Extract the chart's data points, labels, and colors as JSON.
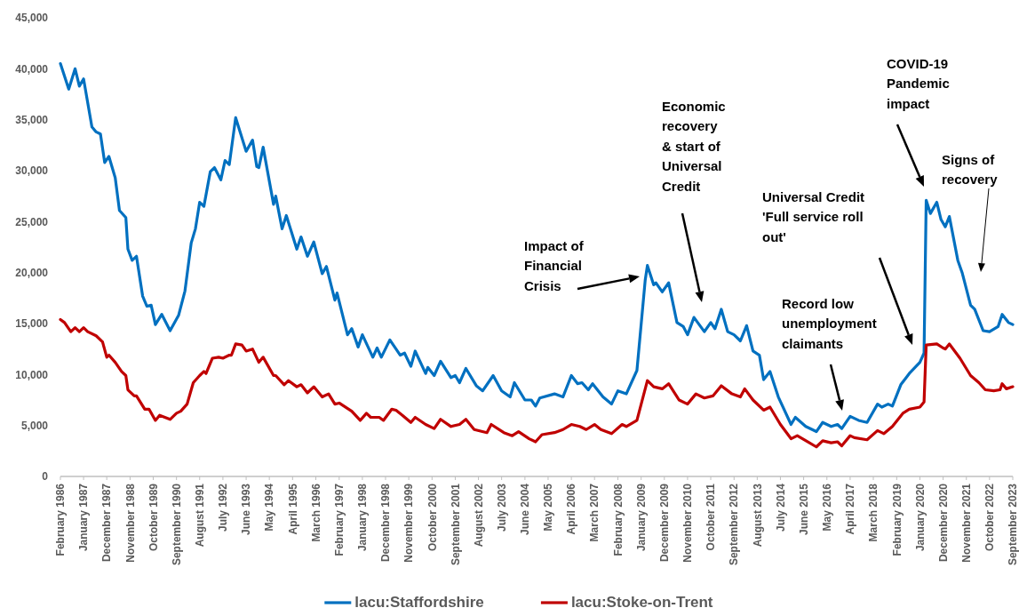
{
  "chart_data": {
    "type": "line",
    "line_style": "solid",
    "marker": "none",
    "grid": false,
    "legend": "bottom",
    "xlim": [
      "1986-02",
      "2023-09"
    ],
    "xticks": [
      {
        "value": "1986-02",
        "label": "February 1986"
      },
      {
        "value": "1987-01",
        "label": "January 1987"
      },
      {
        "value": "1987-12",
        "label": "December 1987"
      },
      {
        "value": "1988-11",
        "label": "November 1988"
      },
      {
        "value": "1989-10",
        "label": "October 1989"
      },
      {
        "value": "1990-09",
        "label": "September 1990"
      },
      {
        "value": "1991-08",
        "label": "August 1991"
      },
      {
        "value": "1992-07",
        "label": "July 1992"
      },
      {
        "value": "1993-06",
        "label": "June 1993"
      },
      {
        "value": "1994-05",
        "label": "May 1994"
      },
      {
        "value": "1995-04",
        "label": "April 1995"
      },
      {
        "value": "1996-03",
        "label": "March 1996"
      },
      {
        "value": "1997-02",
        "label": "February 1997"
      },
      {
        "value": "1998-01",
        "label": "January 1998"
      },
      {
        "value": "1998-12",
        "label": "December 1998"
      },
      {
        "value": "1999-11",
        "label": "November 1999"
      },
      {
        "value": "2000-10",
        "label": "October 2000"
      },
      {
        "value": "2001-09",
        "label": "September 2001"
      },
      {
        "value": "2002-08",
        "label": "August 2002"
      },
      {
        "value": "2003-07",
        "label": "July 2003"
      },
      {
        "value": "2004-06",
        "label": "June 2004"
      },
      {
        "value": "2005-05",
        "label": "May 2005"
      },
      {
        "value": "2006-04",
        "label": "April 2006"
      },
      {
        "value": "2007-03",
        "label": "March 2007"
      },
      {
        "value": "2008-02",
        "label": "February 2008"
      },
      {
        "value": "2009-01",
        "label": "January 2009"
      },
      {
        "value": "2009-12",
        "label": "December 2009"
      },
      {
        "value": "2010-11",
        "label": "November 2010"
      },
      {
        "value": "2011-10",
        "label": "October 2011"
      },
      {
        "value": "2012-09",
        "label": "September 2012"
      },
      {
        "value": "2013-08",
        "label": "August 2013"
      },
      {
        "value": "2014-07",
        "label": "July 2014"
      },
      {
        "value": "2015-06",
        "label": "June 2015"
      },
      {
        "value": "2016-05",
        "label": "May 2016"
      },
      {
        "value": "2017-04",
        "label": "April 2017"
      },
      {
        "value": "2018-03",
        "label": "March 2018"
      },
      {
        "value": "2019-02",
        "label": "February 2019"
      },
      {
        "value": "2020-01",
        "label": "January 2020"
      },
      {
        "value": "2020-12",
        "label": "December 2020"
      },
      {
        "value": "2021-11",
        "label": "November 2021"
      },
      {
        "value": "2022-10",
        "label": "October 2022"
      },
      {
        "value": "2023-09",
        "label": "September 2023"
      }
    ],
    "ylim": [
      0,
      45000
    ],
    "yticks": [
      {
        "value": 0,
        "label": "0"
      },
      {
        "value": 5000,
        "label": "5,000"
      },
      {
        "value": 10000,
        "label": "10,000"
      },
      {
        "value": 15000,
        "label": "15,000"
      },
      {
        "value": 20000,
        "label": "20,000"
      },
      {
        "value": 25000,
        "label": "25,000"
      },
      {
        "value": 30000,
        "label": "30,000"
      },
      {
        "value": 35000,
        "label": "35,000"
      },
      {
        "value": 40000,
        "label": "40,000"
      },
      {
        "value": 45000,
        "label": "45,000"
      }
    ],
    "series": [
      {
        "name": "lacu:Staffordshire",
        "color": "#0070c0",
        "x": [
          "1986-02",
          "1986-06",
          "1986-09",
          "1986-11",
          "1987-01",
          "1987-05",
          "1987-07",
          "1987-09",
          "1987-11",
          "1988-01",
          "1988-04",
          "1988-06",
          "1988-09",
          "1988-10",
          "1988-12",
          "1989-02",
          "1989-05",
          "1989-07",
          "1989-09",
          "1989-11",
          "1990-02",
          "1990-06",
          "1990-10",
          "1991-01",
          "1991-04",
          "1991-06",
          "1991-08",
          "1991-10",
          "1992-01",
          "1992-03",
          "1992-06",
          "1992-08",
          "1992-10",
          "1993-01",
          "1993-03",
          "1993-06",
          "1993-09",
          "1993-11",
          "1993-12",
          "1994-02",
          "1994-07",
          "1994-08",
          "1994-11",
          "1995-01",
          "1995-06",
          "1995-08",
          "1995-11",
          "1996-02",
          "1996-06",
          "1996-08",
          "1996-12",
          "1997-01",
          "1997-06",
          "1997-08",
          "1997-11",
          "1998-01",
          "1998-06",
          "1998-08",
          "1998-10",
          "1999-02",
          "1999-07",
          "1999-09",
          "1999-12",
          "2000-02",
          "2000-07",
          "2000-08",
          "2000-11",
          "2001-02",
          "2001-07",
          "2001-09",
          "2001-11",
          "2002-02",
          "2002-07",
          "2002-10",
          "2003-03",
          "2003-07",
          "2003-11",
          "2004-01",
          "2004-06",
          "2004-09",
          "2004-11",
          "2005-01",
          "2005-08",
          "2005-12",
          "2006-04",
          "2006-07",
          "2006-09",
          "2006-12",
          "2007-02",
          "2007-07",
          "2007-11",
          "2008-02",
          "2008-06",
          "2008-11",
          "2009-03",
          "2009-04",
          "2009-07",
          "2009-08",
          "2009-11",
          "2010-02",
          "2010-06",
          "2010-09",
          "2010-11",
          "2011-02",
          "2011-07",
          "2011-10",
          "2011-12",
          "2012-03",
          "2012-06",
          "2012-09",
          "2012-12",
          "2013-03",
          "2013-06",
          "2013-09",
          "2013-11",
          "2014-02",
          "2014-06",
          "2014-12",
          "2015-02",
          "2015-07",
          "2015-12",
          "2016-03",
          "2016-07",
          "2016-10",
          "2016-12",
          "2017-04",
          "2017-08",
          "2017-12",
          "2018-05",
          "2018-07",
          "2018-10",
          "2018-12",
          "2019-04",
          "2019-08",
          "2020-01",
          "2020-03",
          "2020-04",
          "2020-06",
          "2020-09",
          "2020-11",
          "2021-01",
          "2021-03",
          "2021-07",
          "2021-09",
          "2022-01",
          "2022-03",
          "2022-07",
          "2022-10",
          "2023-02",
          "2023-04",
          "2023-07",
          "2023-09"
        ],
        "values": [
          40500,
          38000,
          40000,
          38300,
          39000,
          34300,
          33800,
          33600,
          30800,
          31400,
          29300,
          26100,
          25400,
          22300,
          21200,
          21600,
          17700,
          16700,
          16800,
          14900,
          15900,
          14300,
          15800,
          18200,
          22900,
          24300,
          26900,
          26500,
          29900,
          30300,
          29100,
          31000,
          30600,
          35200,
          33900,
          31900,
          33000,
          30400,
          30300,
          32300,
          26700,
          27500,
          24300,
          25600,
          22300,
          23500,
          21600,
          23000,
          19900,
          20600,
          17300,
          18000,
          13900,
          14500,
          12700,
          13900,
          11700,
          12600,
          11700,
          13400,
          11900,
          12100,
          10800,
          12300,
          10100,
          10700,
          9900,
          11300,
          9700,
          9900,
          9200,
          10600,
          8900,
          8400,
          9900,
          8400,
          7800,
          9200,
          7500,
          7500,
          6900,
          7700,
          8100,
          7800,
          9900,
          9100,
          9200,
          8500,
          9100,
          7800,
          7100,
          8400,
          8100,
          10400,
          19300,
          20700,
          18800,
          19000,
          18100,
          19000,
          15100,
          14700,
          13900,
          15600,
          14200,
          15100,
          14500,
          16400,
          14200,
          13900,
          13300,
          14800,
          12300,
          11900,
          9500,
          10300,
          7800,
          5100,
          5800,
          4900,
          4400,
          5300,
          4900,
          5100,
          4700,
          5900,
          5500,
          5300,
          7100,
          6800,
          7100,
          6900,
          9000,
          10100,
          11200,
          12100,
          27100,
          25800,
          26900,
          25200,
          24500,
          25500,
          21200,
          20000,
          16800,
          16400,
          14300,
          14200,
          14700,
          15900,
          15100,
          14900
        ]
      },
      {
        "name": "lacu:Stoke-on-Trent",
        "color": "#c00000",
        "x": [
          "1986-02",
          "1986-04",
          "1986-07",
          "1986-09",
          "1986-11",
          "1987-01",
          "1987-03",
          "1987-07",
          "1987-10",
          "1987-12",
          "1988-01",
          "1988-04",
          "1988-07",
          "1988-09",
          "1988-10",
          "1989-01",
          "1989-02",
          "1989-06",
          "1989-08",
          "1989-11",
          "1990-01",
          "1990-06",
          "1990-09",
          "1990-11",
          "1991-02",
          "1991-05",
          "1991-08",
          "1991-10",
          "1991-11",
          "1992-02",
          "1992-05",
          "1992-07",
          "1992-10",
          "1992-11",
          "1993-01",
          "1993-04",
          "1993-06",
          "1993-09",
          "1993-12",
          "1994-02",
          "1994-07",
          "1994-08",
          "1994-12",
          "1995-02",
          "1995-06",
          "1995-08",
          "1995-11",
          "1996-02",
          "1996-06",
          "1996-09",
          "1996-12",
          "1997-02",
          "1997-08",
          "1997-12",
          "1998-03",
          "1998-05",
          "1998-09",
          "1998-11",
          "1999-03",
          "1999-05",
          "1999-08",
          "1999-12",
          "2000-02",
          "2000-07",
          "2000-11",
          "2001-02",
          "2001-07",
          "2001-11",
          "2002-02",
          "2002-06",
          "2002-12",
          "2003-02",
          "2003-08",
          "2003-12",
          "2004-03",
          "2004-08",
          "2004-11",
          "2005-02",
          "2005-08",
          "2005-12",
          "2006-04",
          "2006-08",
          "2006-11",
          "2007-03",
          "2007-06",
          "2007-11",
          "2008-04",
          "2008-06",
          "2008-11",
          "2009-04",
          "2009-07",
          "2009-11",
          "2010-02",
          "2010-07",
          "2010-11",
          "2011-03",
          "2011-07",
          "2011-11",
          "2012-03",
          "2012-08",
          "2012-12",
          "2013-02",
          "2013-06",
          "2013-11",
          "2014-02",
          "2014-07",
          "2014-12",
          "2015-03",
          "2015-08",
          "2015-12",
          "2016-03",
          "2016-07",
          "2016-10",
          "2016-12",
          "2017-04",
          "2017-06",
          "2017-12",
          "2018-05",
          "2018-08",
          "2018-12",
          "2019-05",
          "2019-08",
          "2020-01",
          "2020-03",
          "2020-04",
          "2020-09",
          "2020-12",
          "2021-01",
          "2021-03",
          "2021-08",
          "2022-01",
          "2022-05",
          "2022-08",
          "2022-12",
          "2023-03",
          "2023-04",
          "2023-06",
          "2023-09"
        ],
        "values": [
          15400,
          15100,
          14200,
          14600,
          14200,
          14600,
          14200,
          13800,
          13200,
          11700,
          11900,
          11200,
          10300,
          9900,
          8500,
          7900,
          7900,
          6600,
          6600,
          5500,
          6000,
          5600,
          6200,
          6400,
          7100,
          9200,
          9900,
          10300,
          10100,
          11600,
          11700,
          11600,
          11900,
          11900,
          13000,
          12900,
          12300,
          12500,
          11200,
          11700,
          9900,
          9900,
          9000,
          9400,
          8800,
          9000,
          8200,
          8800,
          7800,
          8100,
          7100,
          7200,
          6400,
          5500,
          6200,
          5800,
          5800,
          5500,
          6600,
          6500,
          6000,
          5300,
          5800,
          5100,
          4700,
          5600,
          4900,
          5100,
          5600,
          4600,
          4300,
          5100,
          4300,
          4000,
          4400,
          3700,
          3400,
          4100,
          4300,
          4600,
          5100,
          4900,
          4600,
          5100,
          4600,
          4200,
          5100,
          4900,
          5500,
          9400,
          8800,
          8600,
          9100,
          7500,
          7100,
          8100,
          7700,
          7900,
          8900,
          8100,
          7800,
          8600,
          7500,
          6500,
          6800,
          5100,
          3700,
          4000,
          3400,
          2900,
          3500,
          3300,
          3400,
          3000,
          4000,
          3800,
          3600,
          4500,
          4200,
          4900,
          6200,
          6600,
          6800,
          7300,
          12900,
          13000,
          12600,
          12500,
          13000,
          11600,
          9900,
          9200,
          8500,
          8400,
          8500,
          9100,
          8600,
          8800
        ]
      }
    ],
    "annotations": [
      "Impact of\nFinancial\nCrisis",
      "Economic\nrecovery\n& start of\nUniversal\nCredit",
      "Record low\nunemployment\nclaimants",
      "Universal Credit\n'Full service roll\nout'",
      "COVID-19\nPandemic\nimpact",
      "Signs of\nrecovery"
    ]
  }
}
